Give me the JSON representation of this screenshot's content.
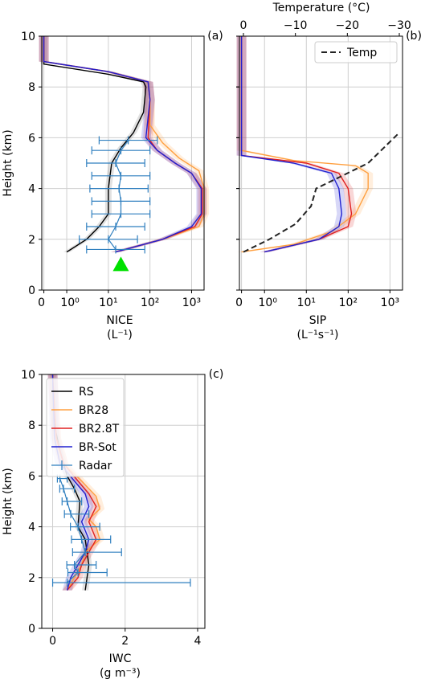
{
  "colors": {
    "RS": "#000000",
    "BR28": "#ffa040",
    "BR2.8T": "#e02020",
    "BR-Sot": "#2020d0",
    "Radar": "#2f7fbf",
    "Temp": "#222222",
    "marker": "#00e000"
  },
  "chart_data": [
    {
      "type": "line",
      "panel": "(a)",
      "xlabel": "NICE",
      "xunits": "(L⁻¹)",
      "ylabel": "Height (km)",
      "xscale": "symlog",
      "xticks": [
        "0",
        "10⁰",
        "10¹",
        "10²",
        "10³"
      ],
      "yticks": [
        "0",
        "2",
        "4",
        "6",
        "8",
        "10"
      ],
      "ylim": [
        0,
        10
      ],
      "grid": true,
      "series": [
        {
          "name": "RS",
          "points": [
            [
              1.0,
              1.5
            ],
            [
              3.0,
              2.0
            ],
            [
              6.0,
              2.5
            ],
            [
              10.0,
              3.0
            ],
            [
              10.0,
              4.0
            ],
            [
              12.0,
              5.0
            ],
            [
              20.0,
              5.6
            ],
            [
              40.0,
              6.2
            ],
            [
              70.0,
              7.0
            ],
            [
              80.0,
              8.0
            ],
            [
              70.0,
              8.2
            ],
            [
              10.0,
              8.5
            ],
            [
              0.0,
              8.9
            ],
            [
              0.0,
              10.0
            ]
          ]
        },
        {
          "name": "BR28",
          "points": [
            [
              15.0,
              1.5
            ],
            [
              200.0,
              2.0
            ],
            [
              1500.0,
              2.5
            ],
            [
              2000.0,
              3.0
            ],
            [
              2000.0,
              4.0
            ],
            [
              1500.0,
              4.7
            ],
            [
              500.0,
              5.2
            ],
            [
              200.0,
              5.8
            ],
            [
              100.0,
              6.5
            ],
            [
              100.0,
              7.5
            ],
            [
              90.0,
              8.2
            ],
            [
              10.0,
              8.6
            ],
            [
              0.0,
              9.0
            ],
            [
              0.0,
              10.0
            ]
          ]
        },
        {
          "name": "BR2.8T",
          "points": [
            [
              15.0,
              1.5
            ],
            [
              200.0,
              2.0
            ],
            [
              1200.0,
              2.5
            ],
            [
              1800.0,
              3.0
            ],
            [
              1800.0,
              4.0
            ],
            [
              1000.0,
              4.6
            ],
            [
              400.0,
              5.0
            ],
            [
              150.0,
              5.5
            ],
            [
              90.0,
              6.0
            ],
            [
              100.0,
              7.5
            ],
            [
              90.0,
              8.2
            ],
            [
              10.0,
              8.6
            ],
            [
              0.0,
              9.0
            ],
            [
              0.0,
              10.0
            ]
          ]
        },
        {
          "name": "BR-Sot",
          "points": [
            [
              15.0,
              1.5
            ],
            [
              200.0,
              2.0
            ],
            [
              1000.0,
              2.5
            ],
            [
              1700.0,
              3.0
            ],
            [
              1700.0,
              4.0
            ],
            [
              1000.0,
              4.6
            ],
            [
              400.0,
              5.0
            ],
            [
              150.0,
              5.5
            ],
            [
              80.0,
              6.0
            ],
            [
              100.0,
              7.5
            ],
            [
              90.0,
              8.2
            ],
            [
              10.0,
              8.6
            ],
            [
              0.0,
              9.0
            ],
            [
              0.0,
              10.0
            ]
          ]
        },
        {
          "name": "Radar",
          "points": [
            [
              15.0,
              1.6
            ],
            [
              10.0,
              2.0
            ],
            [
              15.0,
              2.5
            ],
            [
              20.0,
              3.0
            ],
            [
              20.0,
              3.5
            ],
            [
              18.0,
              4.0
            ],
            [
              20.0,
              4.5
            ],
            [
              15.0,
              5.0
            ],
            [
              20.0,
              5.5
            ],
            [
              30.0,
              5.9
            ]
          ],
          "xerr_factor": 5
        }
      ],
      "marker": {
        "shape": "triangle",
        "x": 20,
        "y": 1.0
      }
    },
    {
      "type": "line",
      "panel": "(b)",
      "xlabel": "SIP",
      "xunits": "(L⁻¹s⁻¹)",
      "xscale": "symlog",
      "xticks": [
        "0",
        "10⁰",
        "10¹",
        "10²",
        "10³"
      ],
      "xlabel_top": "Temperature (°C)",
      "xticks_top": [
        "0",
        "−10",
        "−20",
        "−30"
      ],
      "xlim_top": [
        0,
        -30
      ],
      "ylim": [
        0,
        10
      ],
      "grid": true,
      "legend": {
        "position": "top-right",
        "entries": [
          "Temp"
        ]
      },
      "series": [
        {
          "name": "BR28",
          "points": [
            [
              0.0,
              1.5
            ],
            [
              5.0,
              1.8
            ],
            [
              40.0,
              2.3
            ],
            [
              150.0,
              3.0
            ],
            [
              300.0,
              4.0
            ],
            [
              300.0,
              4.6
            ],
            [
              150.0,
              4.9
            ],
            [
              5.0,
              5.1
            ],
            [
              0.0,
              5.5
            ],
            [
              0.0,
              10.0
            ]
          ]
        },
        {
          "name": "BR2.8T",
          "points": [
            [
              1.0,
              1.5
            ],
            [
              20.0,
              2.0
            ],
            [
              100.0,
              2.5
            ],
            [
              120.0,
              3.0
            ],
            [
              100.0,
              4.0
            ],
            [
              60.0,
              4.6
            ],
            [
              10.0,
              5.0
            ],
            [
              0.0,
              5.3
            ],
            [
              0.0,
              10.0
            ]
          ]
        },
        {
          "name": "BR-Sot",
          "points": [
            [
              1.0,
              1.5
            ],
            [
              20.0,
              2.0
            ],
            [
              60.0,
              2.5
            ],
            [
              70.0,
              3.0
            ],
            [
              60.0,
              4.0
            ],
            [
              40.0,
              4.6
            ],
            [
              5.0,
              5.0
            ],
            [
              0.0,
              5.3
            ],
            [
              0.0,
              10.0
            ]
          ]
        },
        {
          "name": "Temp",
          "axis": "top",
          "dash": true,
          "points": [
            [
              0.0,
              1.5
            ],
            [
              -5.0,
              2.0
            ],
            [
              -10.0,
              2.6
            ],
            [
              -13.0,
              3.3
            ],
            [
              -14.0,
              4.0
            ],
            [
              -18.0,
              4.4
            ],
            [
              -24.0,
              5.0
            ],
            [
              -30.0,
              6.2
            ]
          ]
        }
      ]
    },
    {
      "type": "line",
      "panel": "(c)",
      "xlabel": "IWC",
      "xunits": "(g m⁻³)",
      "ylabel": "Height (km)",
      "xticks": [
        "0",
        "2",
        "4"
      ],
      "xlim": [
        -0.3,
        4.2
      ],
      "ylim": [
        0,
        10
      ],
      "yticks": [
        "0",
        "2",
        "4",
        "6",
        "8",
        "10"
      ],
      "grid": true,
      "legend": {
        "position": "top-left",
        "entries": [
          "RS",
          "BR28",
          "BR2.8T",
          "BR-Sot",
          "Radar"
        ]
      },
      "series": [
        {
          "name": "RS",
          "points": [
            [
              0.9,
              1.5
            ],
            [
              1.0,
              2.5
            ],
            [
              0.9,
              3.5
            ],
            [
              0.7,
              4.0
            ],
            [
              0.75,
              5.0
            ],
            [
              0.6,
              5.5
            ],
            [
              0.4,
              6.0
            ],
            [
              0.2,
              7.0
            ],
            [
              0.05,
              8.0
            ],
            [
              0.0,
              10.0
            ]
          ]
        },
        {
          "name": "BR28",
          "points": [
            [
              0.4,
              1.5
            ],
            [
              0.6,
              2.0
            ],
            [
              0.8,
              2.5
            ],
            [
              0.9,
              3.0
            ],
            [
              1.3,
              3.5
            ],
            [
              1.2,
              4.0
            ],
            [
              1.0,
              4.3
            ],
            [
              1.3,
              4.7
            ],
            [
              1.2,
              5.2
            ],
            [
              0.8,
              5.8
            ],
            [
              0.3,
              6.5
            ],
            [
              0.1,
              7.5
            ],
            [
              0.0,
              10.0
            ]
          ]
        },
        {
          "name": "BR2.8T",
          "points": [
            [
              0.4,
              1.5
            ],
            [
              0.7,
              2.0
            ],
            [
              0.8,
              2.5
            ],
            [
              1.0,
              3.0
            ],
            [
              1.2,
              3.5
            ],
            [
              1.0,
              4.2
            ],
            [
              1.2,
              4.8
            ],
            [
              1.0,
              5.3
            ],
            [
              0.7,
              5.8
            ],
            [
              0.3,
              6.5
            ],
            [
              0.1,
              7.5
            ],
            [
              0.0,
              10.0
            ]
          ]
        },
        {
          "name": "BR-Sot",
          "points": [
            [
              0.4,
              1.5
            ],
            [
              0.5,
              2.0
            ],
            [
              0.7,
              2.5
            ],
            [
              0.9,
              3.0
            ],
            [
              1.0,
              3.5
            ],
            [
              0.8,
              4.2
            ],
            [
              1.0,
              4.8
            ],
            [
              0.9,
              5.3
            ],
            [
              0.6,
              5.8
            ],
            [
              0.2,
              6.5
            ],
            [
              0.05,
              7.5
            ],
            [
              0.0,
              10.0
            ]
          ]
        },
        {
          "name": "Radar",
          "points": [
            [
              0.4,
              1.8
            ],
            [
              0.7,
              2.2
            ],
            [
              0.6,
              2.5
            ],
            [
              0.9,
              3.0
            ],
            [
              0.8,
              3.5
            ],
            [
              0.7,
              4.0
            ],
            [
              0.5,
              4.5
            ],
            [
              0.4,
              5.0
            ],
            [
              0.3,
              5.5
            ],
            [
              0.2,
              5.9
            ]
          ],
          "xerr": [
            3.4,
            0.8,
            0.6,
            1.0,
            0.8,
            0.6,
            0.5,
            0.4,
            0.3,
            0.2
          ]
        }
      ]
    }
  ]
}
